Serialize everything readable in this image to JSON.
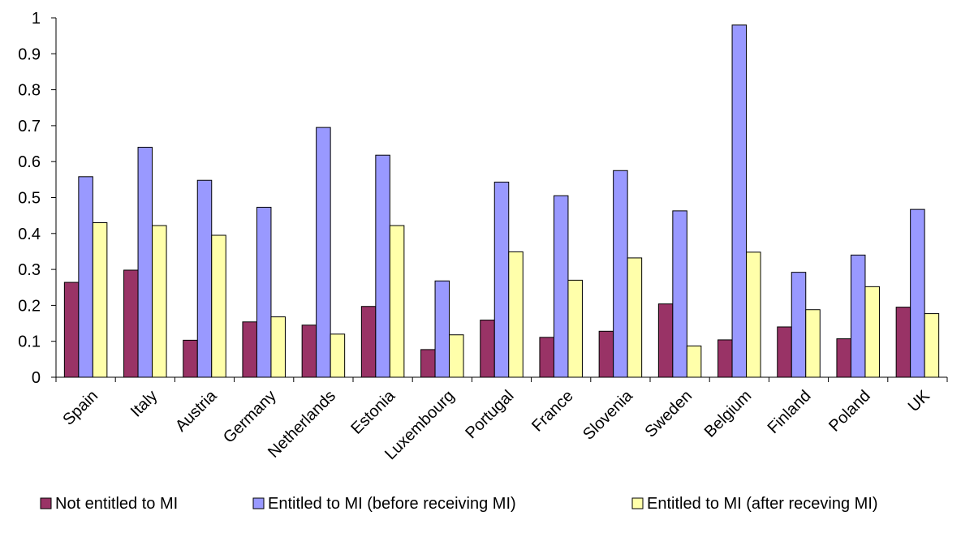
{
  "chart_data": {
    "type": "bar",
    "categories": [
      "Spain",
      "Italy",
      "Austria",
      "Germany",
      "Netherlands",
      "Estonia",
      "Luxembourg",
      "Portugal",
      "France",
      "Slovenia",
      "Sweden",
      "Belgium",
      "Finland",
      "Poland",
      "UK"
    ],
    "series": [
      {
        "name": "Not entitled to MI",
        "color": "#993366",
        "values": [
          0.264,
          0.298,
          0.103,
          0.154,
          0.145,
          0.197,
          0.077,
          0.159,
          0.111,
          0.128,
          0.204,
          0.104,
          0.14,
          0.107,
          0.195
        ]
      },
      {
        "name": "Entitled to MI (before receiving MI)",
        "color": "#9999FF",
        "values": [
          0.558,
          0.64,
          0.548,
          0.473,
          0.695,
          0.618,
          0.268,
          0.543,
          0.505,
          0.575,
          0.463,
          0.98,
          0.292,
          0.34,
          0.467
        ]
      },
      {
        "name": "Entitled to MI (after receving MI)",
        "color": "#FFFFAA",
        "values": [
          0.43,
          0.422,
          0.395,
          0.168,
          0.12,
          0.422,
          0.118,
          0.349,
          0.27,
          0.332,
          0.087,
          0.348,
          0.188,
          0.252,
          0.177
        ]
      }
    ],
    "title": "",
    "xlabel": "",
    "ylabel": "",
    "ylim": [
      0,
      1
    ],
    "yticks": [
      "0",
      "0.1",
      "0.2",
      "0.3",
      "0.4",
      "0.5",
      "0.6",
      "0.7",
      "0.8",
      "0.9",
      "1"
    ],
    "grid": false,
    "legend_position": "bottom"
  }
}
